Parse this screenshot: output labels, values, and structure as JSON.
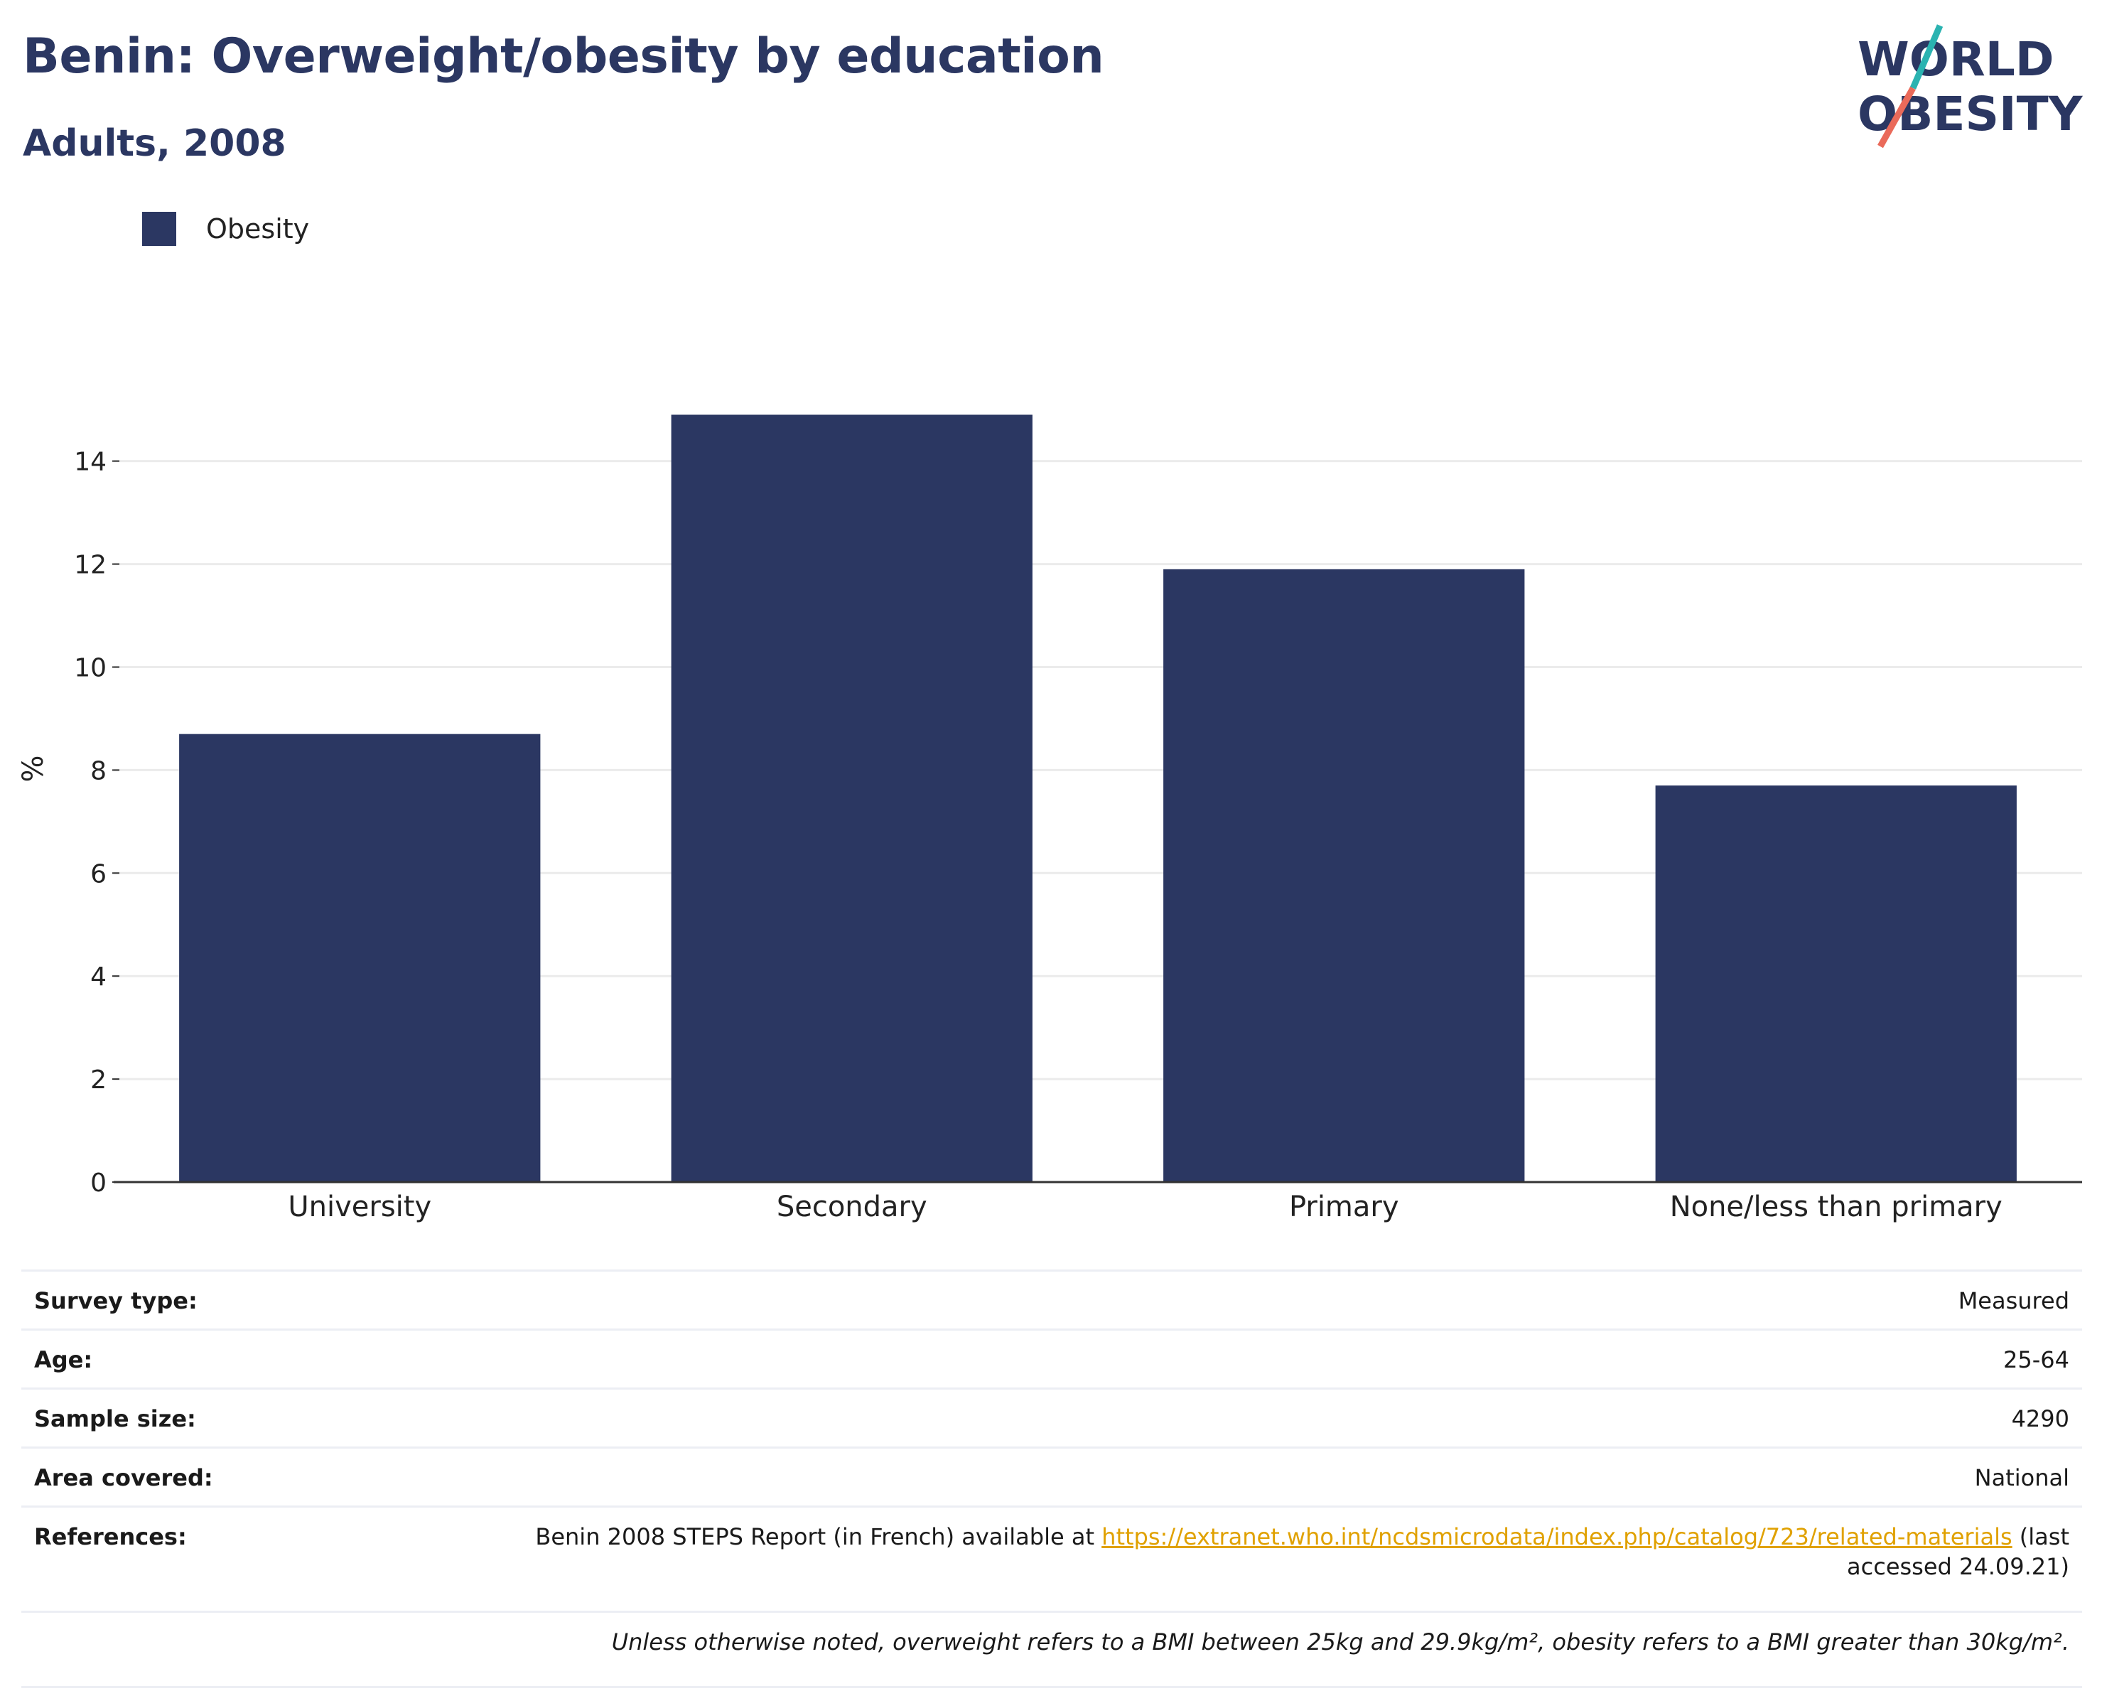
{
  "header": {
    "title": "Benin: Overweight/obesity by education",
    "subtitle": "Adults, 2008"
  },
  "logo": {
    "line1": "WORLD",
    "line2": "OBESITY",
    "accent_teal": "#2bb3b1",
    "accent_coral": "#ea6a5a"
  },
  "legend": {
    "label": "Obesity",
    "color": "#2b3762"
  },
  "chart_data": {
    "type": "bar",
    "categories": [
      "University",
      "Secondary",
      "Primary",
      "None/less than primary"
    ],
    "series": [
      {
        "name": "Obesity",
        "values": [
          8.7,
          14.9,
          11.9,
          7.7
        ],
        "color": "#2b3762"
      }
    ],
    "ylabel": "%",
    "xlabel": "",
    "ylim": [
      0,
      15.5
    ],
    "yticks": [
      0,
      2,
      4,
      6,
      8,
      10,
      12,
      14
    ],
    "grid": true,
    "legend_position": "top-left"
  },
  "info": {
    "survey_type_label": "Survey type:",
    "survey_type_value": "Measured",
    "age_label": "Age:",
    "age_value": "25-64",
    "sample_label": "Sample size:",
    "sample_value": "4290",
    "area_label": "Area covered:",
    "area_value": "National",
    "references_label": "References:",
    "references_prefix": "Benin 2008 STEPS Report (in French) available at",
    "references_link": "https://extranet.who.int/ncdsmicrodata/index.php/catalog/723/related-materials",
    "references_suffix_1": "(last",
    "references_suffix_2": "accessed 24.09.21)",
    "note": "Unless otherwise noted, overweight refers to a BMI between 25kg and 29.9kg/m², obesity refers to a BMI greater than 30kg/m²."
  }
}
